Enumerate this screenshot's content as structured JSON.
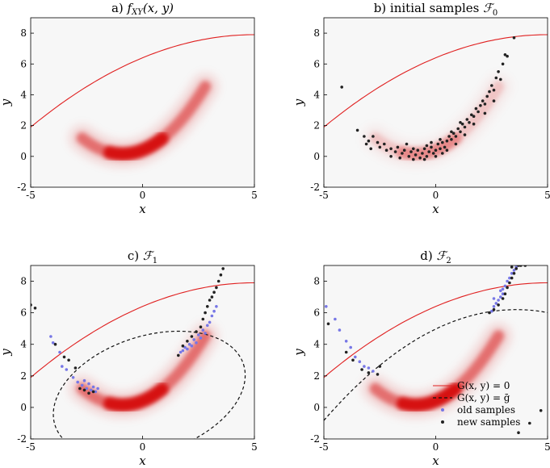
{
  "chart_data": [
    {
      "type": "scatter",
      "title": "a) f_XY(x, y)",
      "xlabel": "x",
      "ylabel": "y",
      "xlim": [
        -5,
        5
      ],
      "ylim": [
        -2,
        9
      ],
      "x_ticks": [
        "-5",
        "0",
        "5"
      ],
      "y_ticks": [
        "-2",
        "0",
        "2",
        "4",
        "6",
        "8"
      ],
      "background": "#f7f7f7",
      "density": "banana-shaped density, red shading",
      "series": []
    },
    {
      "type": "scatter",
      "title": "b) initial samples F_0",
      "xlabel": "x",
      "ylabel": "y",
      "xlim": [
        -5,
        5
      ],
      "ylim": [
        -2,
        9
      ],
      "x_ticks": [
        "-5",
        "0",
        "5"
      ],
      "y_ticks": [
        "-2",
        "0",
        "2",
        "4",
        "6",
        "8"
      ],
      "background": "#f7f7f7",
      "series": [
        {
          "role": "new",
          "points": [
            [
              -4.2,
              4.5
            ],
            [
              -3.5,
              1.7
            ],
            [
              -3.2,
              1.3
            ],
            [
              -3.0,
              1.0
            ],
            [
              -2.8,
              1.3
            ],
            [
              -2.6,
              0.9
            ],
            [
              -2.5,
              0.6
            ],
            [
              -2.3,
              0.8
            ],
            [
              -2.2,
              0.4
            ],
            [
              -2.0,
              0.5
            ],
            [
              -1.8,
              0.3
            ],
            [
              -1.7,
              0.6
            ],
            [
              -1.5,
              0.2
            ],
            [
              -1.4,
              0.4
            ],
            [
              -1.2,
              0.0
            ],
            [
              -1.1,
              0.3
            ],
            [
              -1.0,
              0.5
            ],
            [
              -0.9,
              0.1
            ],
            [
              -0.8,
              0.4
            ],
            [
              -0.7,
              -0.1
            ],
            [
              -0.6,
              0.2
            ],
            [
              -0.5,
              0.5
            ],
            [
              -0.4,
              0.0
            ],
            [
              -0.3,
              0.3
            ],
            [
              -0.2,
              0.6
            ],
            [
              -0.1,
              0.2
            ],
            [
              0.0,
              0.4
            ],
            [
              0.1,
              0.8
            ],
            [
              0.2,
              0.5
            ],
            [
              0.3,
              0.9
            ],
            [
              0.4,
              0.6
            ],
            [
              0.5,
              1.0
            ],
            [
              0.6,
              1.3
            ],
            [
              0.7,
              1.1
            ],
            [
              0.8,
              1.5
            ],
            [
              0.9,
              1.3
            ],
            [
              1.0,
              1.8
            ],
            [
              1.1,
              1.6
            ],
            [
              1.2,
              2.1
            ],
            [
              1.3,
              1.9
            ],
            [
              1.4,
              2.4
            ],
            [
              1.5,
              2.2
            ],
            [
              1.6,
              2.7
            ],
            [
              1.7,
              2.6
            ],
            [
              1.8,
              3.1
            ],
            [
              1.9,
              2.9
            ],
            [
              2.0,
              3.3
            ],
            [
              2.1,
              3.6
            ],
            [
              2.2,
              3.4
            ],
            [
              2.3,
              3.9
            ],
            [
              2.4,
              4.2
            ],
            [
              2.5,
              4.6
            ],
            [
              2.6,
              4.3
            ],
            [
              2.7,
              5.1
            ],
            [
              2.8,
              5.5
            ],
            [
              2.9,
              5.0
            ],
            [
              3.0,
              6.0
            ],
            [
              3.1,
              6.6
            ],
            [
              3.2,
              6.5
            ],
            [
              3.5,
              7.7
            ],
            [
              -2.0,
              0.0
            ],
            [
              -1.6,
              -0.1
            ],
            [
              -1.0,
              -0.2
            ],
            [
              -0.5,
              -0.2
            ],
            [
              0.0,
              0.0
            ],
            [
              0.3,
              0.2
            ],
            [
              -0.2,
              0.9
            ],
            [
              0.5,
              0.4
            ],
            [
              0.9,
              0.8
            ],
            [
              1.3,
              1.4
            ],
            [
              -2.9,
              0.5
            ],
            [
              -3.1,
              0.8
            ],
            [
              -1.3,
              0.8
            ],
            [
              -0.4,
              0.7
            ],
            [
              0.2,
              1.1
            ],
            [
              0.7,
              1.6
            ],
            [
              1.1,
              2.2
            ],
            [
              1.7,
              2.1
            ],
            [
              2.2,
              2.8
            ],
            [
              2.6,
              3.6
            ]
          ]
        }
      ]
    },
    {
      "type": "scatter",
      "title": "c) F_1",
      "xlabel": "x",
      "ylabel": "y",
      "xlim": [
        -5,
        5
      ],
      "ylim": [
        -2,
        9
      ],
      "x_ticks": [
        "-5",
        "0",
        "5"
      ],
      "y_ticks": [
        "-2",
        "0",
        "2",
        "4",
        "6",
        "8"
      ],
      "background": "#f7f7f7",
      "series": [
        {
          "role": "old",
          "points": [
            [
              -4.1,
              4.5
            ],
            [
              -4.0,
              4.1
            ],
            [
              -3.7,
              3.5
            ],
            [
              -3.6,
              2.6
            ],
            [
              -3.4,
              2.4
            ],
            [
              -3.1,
              1.9
            ],
            [
              -2.9,
              1.6
            ],
            [
              -2.7,
              1.4
            ],
            [
              -2.6,
              1.7
            ],
            [
              -2.5,
              1.2
            ],
            [
              -2.4,
              1.5
            ],
            [
              -2.3,
              1.1
            ],
            [
              -2.2,
              1.3
            ],
            [
              -2.1,
              1.0
            ],
            [
              -2.0,
              1.2
            ],
            [
              1.7,
              3.5
            ],
            [
              1.8,
              3.6
            ],
            [
              1.9,
              3.8
            ],
            [
              2.0,
              3.7
            ],
            [
              2.1,
              4.0
            ],
            [
              2.2,
              3.9
            ],
            [
              2.3,
              4.3
            ],
            [
              2.4,
              4.1
            ],
            [
              2.5,
              4.6
            ],
            [
              2.6,
              4.4
            ],
            [
              2.7,
              4.9
            ],
            [
              2.8,
              4.7
            ],
            [
              2.9,
              5.2
            ],
            [
              3.0,
              5.4
            ],
            [
              3.1,
              5.8
            ],
            [
              3.2,
              6.1
            ],
            [
              3.3,
              6.4
            ]
          ]
        },
        {
          "role": "new",
          "points": [
            [
              -5.0,
              6.5
            ],
            [
              -4.8,
              6.3
            ],
            [
              -3.9,
              4.0
            ],
            [
              -3.5,
              3.2
            ],
            [
              -3.3,
              3.0
            ],
            [
              -3.0,
              2.5
            ],
            [
              -2.8,
              1.2
            ],
            [
              -2.6,
              1.1
            ],
            [
              -2.4,
              0.9
            ],
            [
              -2.2,
              1.0
            ],
            [
              1.6,
              3.3
            ],
            [
              1.8,
              3.9
            ],
            [
              2.0,
              4.2
            ],
            [
              2.2,
              4.5
            ],
            [
              2.4,
              4.8
            ],
            [
              2.6,
              5.1
            ],
            [
              2.7,
              5.6
            ],
            [
              2.8,
              6.0
            ],
            [
              2.9,
              6.4
            ],
            [
              3.0,
              6.8
            ],
            [
              3.1,
              7.0
            ],
            [
              3.2,
              7.3
            ],
            [
              3.3,
              7.6
            ],
            [
              3.4,
              8.0
            ],
            [
              3.5,
              8.4
            ],
            [
              3.6,
              8.8
            ]
          ]
        }
      ],
      "contour": {
        "label": "G(x,y) = g̅",
        "shape": "ellipse"
      }
    },
    {
      "type": "scatter",
      "title": "d) F_2",
      "xlabel": "x",
      "ylabel": "y",
      "xlim": [
        -5,
        5
      ],
      "ylim": [
        -2,
        9
      ],
      "x_ticks": [
        "-5",
        "0",
        "5"
      ],
      "y_ticks": [
        "-2",
        "0",
        "2",
        "4",
        "6",
        "8"
      ],
      "background": "#f7f7f7",
      "series": [
        {
          "role": "old",
          "points": [
            [
              -4.9,
              6.4
            ],
            [
              -4.5,
              5.6
            ],
            [
              -4.3,
              4.9
            ],
            [
              -4.0,
              4.2
            ],
            [
              -3.8,
              3.8
            ],
            [
              -3.6,
              3.2
            ],
            [
              -3.4,
              2.9
            ],
            [
              -3.2,
              2.6
            ],
            [
              -3.0,
              2.5
            ],
            [
              -2.8,
              2.3
            ],
            [
              2.5,
              6.1
            ],
            [
              2.6,
              6.4
            ],
            [
              2.7,
              6.6
            ],
            [
              2.8,
              6.8
            ],
            [
              2.9,
              7.0
            ],
            [
              3.0,
              7.2
            ],
            [
              3.0,
              7.5
            ],
            [
              3.1,
              7.7
            ],
            [
              3.2,
              8.0
            ],
            [
              3.3,
              8.2
            ],
            [
              3.4,
              8.5
            ],
            [
              3.5,
              8.7
            ],
            [
              3.6,
              8.9
            ],
            [
              2.6,
              6.9
            ],
            [
              2.9,
              7.4
            ]
          ]
        },
        {
          "role": "new",
          "points": [
            [
              -4.8,
              5.3
            ],
            [
              -4.0,
              3.5
            ],
            [
              -3.7,
              3.0
            ],
            [
              -3.3,
              2.4
            ],
            [
              -3.0,
              2.2
            ],
            [
              -2.6,
              2.1
            ],
            [
              -2.5,
              2.6
            ],
            [
              2.4,
              6.0
            ],
            [
              2.6,
              6.2
            ],
            [
              2.8,
              6.5
            ],
            [
              3.0,
              6.9
            ],
            [
              3.1,
              7.2
            ],
            [
              3.2,
              7.6
            ],
            [
              3.3,
              7.9
            ],
            [
              3.4,
              8.2
            ],
            [
              3.5,
              8.5
            ],
            [
              3.6,
              8.8
            ],
            [
              3.7,
              9.0
            ],
            [
              3.8,
              9.0
            ],
            [
              3.4,
              8.9
            ],
            [
              4.0,
              9.0
            ],
            [
              4.7,
              -0.2
            ],
            [
              4.2,
              -1.0
            ],
            [
              3.7,
              -1.6
            ]
          ]
        }
      ],
      "contour": {
        "label": "G(x,y) = g̅",
        "shape": "upper-arc"
      }
    }
  ],
  "legend": {
    "placement": "bottom-right of panel d",
    "items": [
      {
        "label": "G(x, y) = 0",
        "style": "red-solid-line"
      },
      {
        "label": "G(x, y) = ḡ",
        "style": "black-dashed-line"
      },
      {
        "label": "old samples",
        "style": "blue-dot"
      },
      {
        "label": "new samples",
        "style": "black-dot"
      }
    ]
  },
  "colors": {
    "limit_state": "#e02020",
    "contour": "#111111",
    "old_samples": "#7777e6",
    "new_samples": "#222222",
    "density": "#d40000",
    "panel_bg": "#f7f7f7"
  },
  "limit_curve": {
    "label": "G(x, y) = 0"
  }
}
